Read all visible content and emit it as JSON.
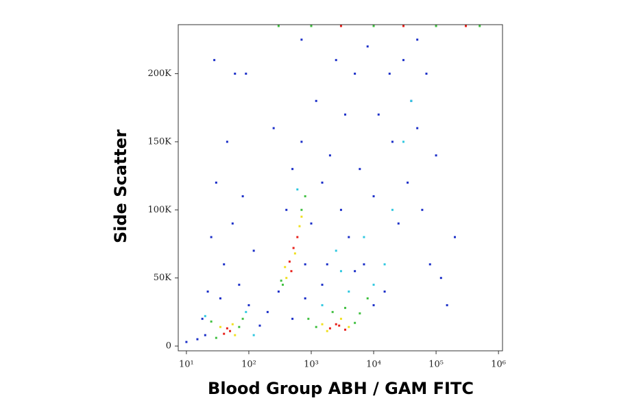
{
  "chart_data": {
    "type": "scatter",
    "x_label": "Blood Group ABH / GAM FITC",
    "y_label": "Side Scatter",
    "xscale": "log",
    "xlim": [
      7.4,
      1160000
    ],
    "xticks": [
      {
        "value": 10,
        "label": "10¹"
      },
      {
        "value": 100,
        "label": "10²"
      },
      {
        "value": 1000,
        "label": "10³"
      },
      {
        "value": 10000,
        "label": "10⁴"
      },
      {
        "value": 100000,
        "label": "10⁵"
      },
      {
        "value": 1000000,
        "label": "10⁶"
      }
    ],
    "ylim": [
      -3500,
      236000
    ],
    "yticks": [
      0,
      {
        "value": 50000,
        "label": "50K"
      },
      {
        "value": 100000,
        "label": "100K"
      },
      {
        "value": 150000,
        "label": "150K"
      },
      {
        "value": 200000,
        "label": "200K"
      }
    ],
    "series": [
      {
        "color": "#1a2ec8",
        "x": [
          15,
          18,
          22,
          25,
          30,
          35,
          40,
          45,
          55,
          60,
          70,
          80,
          100,
          120,
          150,
          200,
          250,
          300,
          400,
          500,
          700,
          800,
          1000,
          1200,
          1500,
          1800,
          2000,
          2500,
          3000,
          3500,
          4000,
          5000,
          6000,
          7000,
          8000,
          10000,
          12000,
          15000,
          18000,
          20000,
          25000,
          30000,
          35000,
          40000,
          50000,
          60000,
          70000,
          80000,
          100000,
          120000,
          150000,
          500,
          800,
          1500,
          5000,
          10000,
          20,
          10,
          90,
          28,
          700,
          50000,
          200000
        ],
        "y": [
          5000,
          20000,
          40000,
          80000,
          120000,
          35000,
          60000,
          150000,
          90000,
          200000,
          45000,
          110000,
          30000,
          70000,
          15000,
          25000,
          160000,
          40000,
          100000,
          130000,
          150000,
          60000,
          90000,
          180000,
          120000,
          60000,
          140000,
          210000,
          100000,
          170000,
          80000,
          200000,
          130000,
          60000,
          220000,
          110000,
          170000,
          40000,
          200000,
          150000,
          90000,
          210000,
          120000,
          180000,
          160000,
          100000,
          200000,
          60000,
          140000,
          50000,
          30000,
          20000,
          35000,
          45000,
          55000,
          30000,
          8000,
          3000,
          200000,
          210000,
          225000,
          225000,
          80000
        ]
      },
      {
        "color": "#30c8e0",
        "x": [
          20,
          90,
          120,
          1500,
          4000,
          10000,
          15000,
          20000,
          3000,
          600,
          7000,
          30000,
          40000,
          2500
        ],
        "y": [
          22000,
          25000,
          8000,
          30000,
          40000,
          45000,
          60000,
          100000,
          55000,
          115000,
          80000,
          150000,
          180000,
          70000
        ]
      },
      {
        "color": "#40c040",
        "x": [
          30,
          70,
          80,
          25,
          1200,
          5000,
          6000,
          3500,
          900,
          350,
          700,
          800,
          330,
          2200,
          8000,
          300,
          1000,
          10000,
          100000,
          500000
        ],
        "y": [
          6000,
          14000,
          20000,
          18000,
          14000,
          17000,
          24000,
          28000,
          20000,
          45000,
          100000,
          110000,
          48000,
          25000,
          35000,
          235000,
          235000,
          235000,
          235000,
          235000
        ]
      },
      {
        "color": "#f0e020",
        "x": [
          35,
          60,
          55,
          1500,
          4000,
          3000,
          1800,
          400,
          650,
          550,
          380,
          700
        ],
        "y": [
          14000,
          8000,
          16000,
          16000,
          14000,
          20000,
          11000,
          50000,
          88000,
          68000,
          58000,
          95000
        ]
      },
      {
        "color": "#e8201a",
        "x": [
          40,
          50,
          45,
          2000,
          2800,
          3500,
          2500,
          450,
          520,
          600,
          480,
          3000,
          30000,
          300000
        ],
        "y": [
          9000,
          11000,
          13000,
          13000,
          15000,
          12000,
          16000,
          62000,
          72000,
          80000,
          55000,
          235000,
          235000,
          235000
        ]
      }
    ]
  }
}
